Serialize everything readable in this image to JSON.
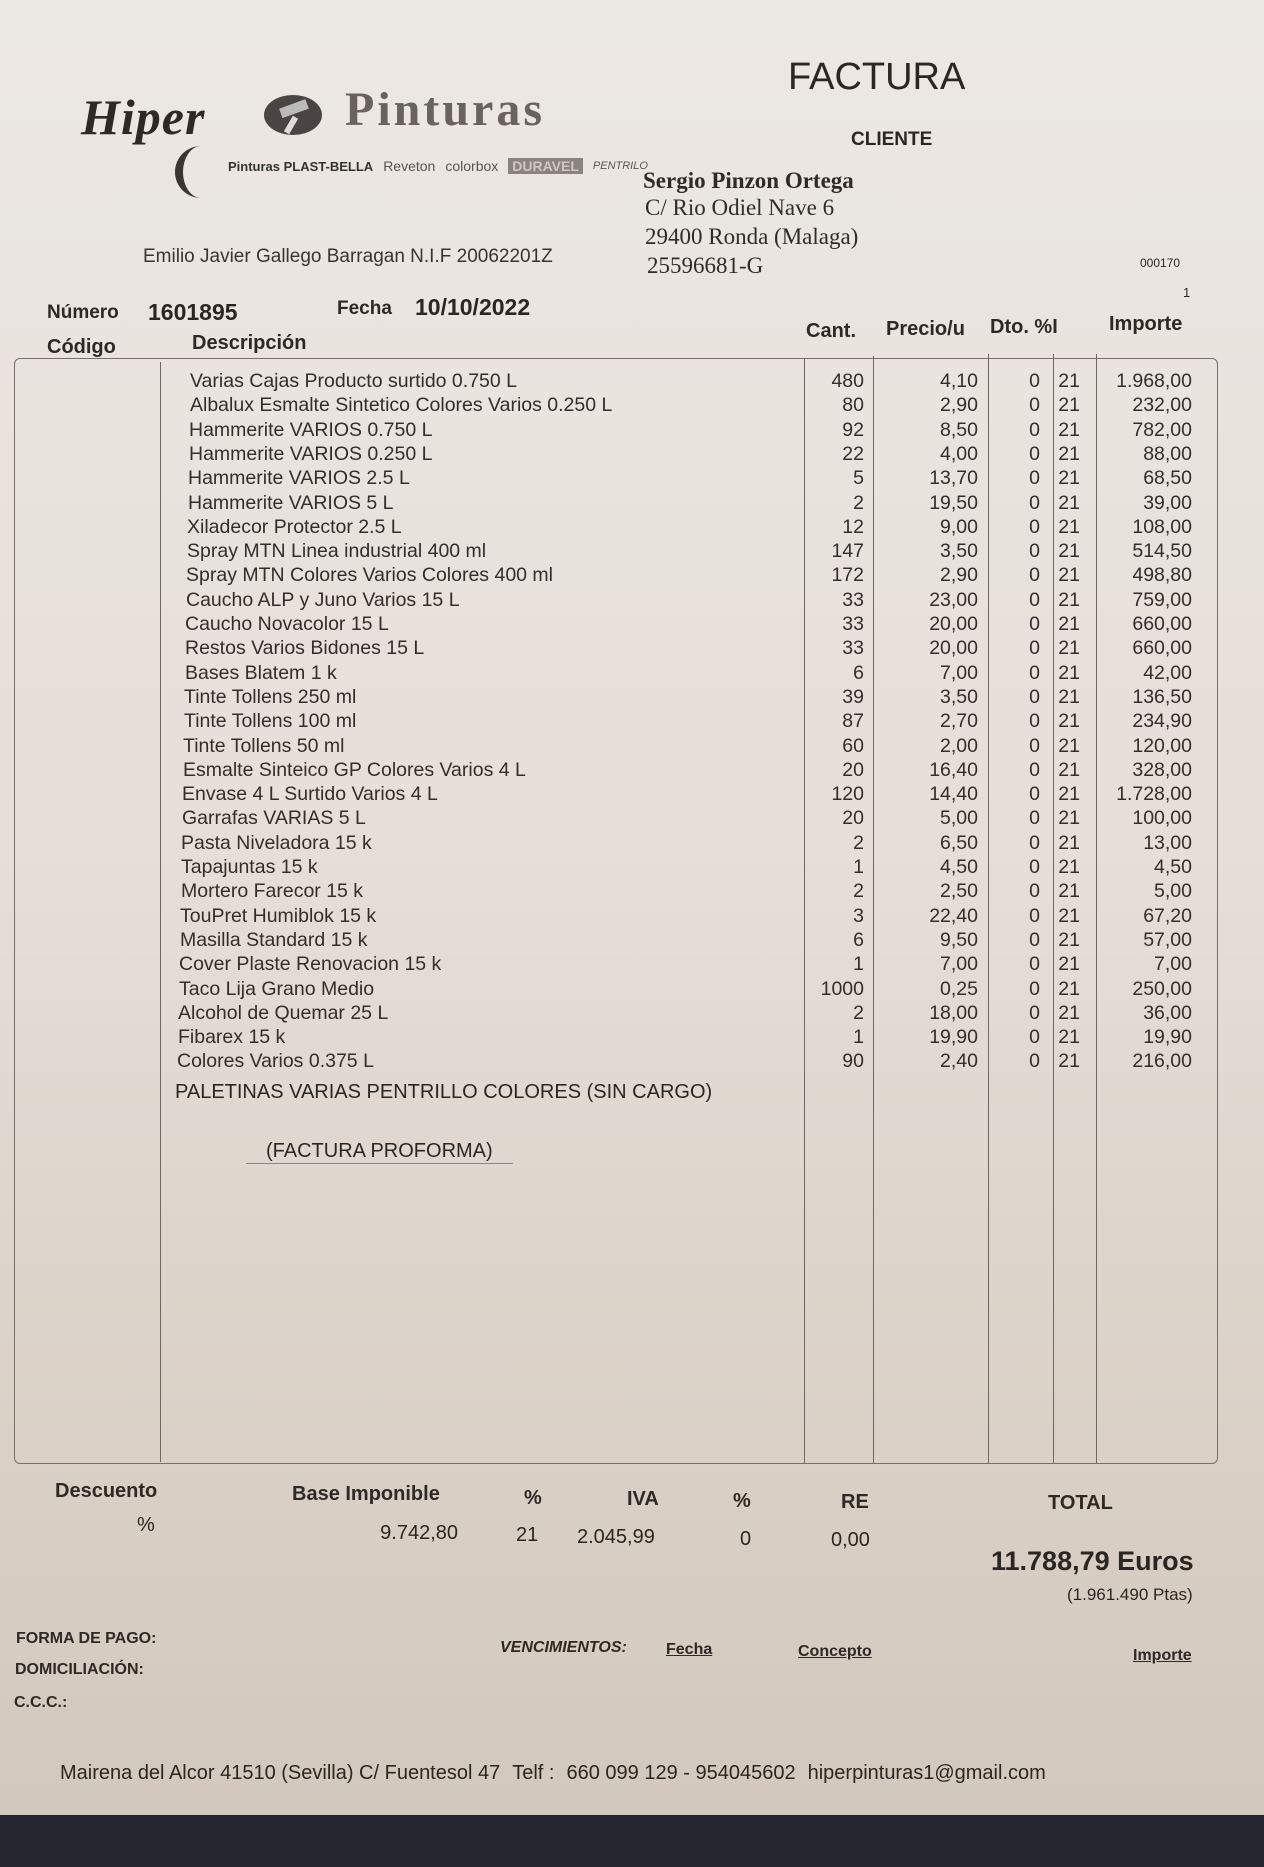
{
  "header": {
    "doc_title": "FACTURA",
    "client_label": "CLIENTE",
    "logo": {
      "word1": "Hiper",
      "word2": "Pinturas",
      "brands": [
        "Pinturas PLAST-BELLA",
        "Reveton",
        "colorbox",
        "DURAVEL",
        "PENTRILO"
      ]
    },
    "issuer": "Emilio Javier Gallego Barragan N.I.F 20062201Z",
    "client": {
      "name": "Sergio Pinzon Ortega",
      "address1": "C/ Rio Odiel Nave 6",
      "address2": "29400 Ronda (Malaga)",
      "nif": "25596681-G"
    },
    "ref_code": "000170",
    "page": "1",
    "numero_label": "Número",
    "numero": "1601895",
    "fecha_label": "Fecha",
    "fecha": "10/10/2022"
  },
  "table": {
    "columns": {
      "codigo": "Código",
      "descripcion": "Descripción",
      "cant": "Cant.",
      "precio": "Precio/u",
      "dto": "Dto. %I",
      "importe": "Importe"
    },
    "rows": [
      {
        "desc": "Varias Cajas Producto surtido 0.750 L",
        "cant": "480",
        "precio": "4,10",
        "dto": "0",
        "iva": "21",
        "importe": "1.968,00"
      },
      {
        "desc": "Albalux Esmalte Sintetico Colores Varios 0.250 L",
        "cant": "80",
        "precio": "2,90",
        "dto": "0",
        "iva": "21",
        "importe": "232,00"
      },
      {
        "desc": "Hammerite VARIOS 0.750 L",
        "cant": "92",
        "precio": "8,50",
        "dto": "0",
        "iva": "21",
        "importe": "782,00"
      },
      {
        "desc": "Hammerite VARIOS 0.250 L",
        "cant": "22",
        "precio": "4,00",
        "dto": "0",
        "iva": "21",
        "importe": "88,00"
      },
      {
        "desc": "Hammerite VARIOS 2.5 L",
        "cant": "5",
        "precio": "13,70",
        "dto": "0",
        "iva": "21",
        "importe": "68,50"
      },
      {
        "desc": "Hammerite VARIOS 5 L",
        "cant": "2",
        "precio": "19,50",
        "dto": "0",
        "iva": "21",
        "importe": "39,00"
      },
      {
        "desc": "Xiladecor Protector 2.5 L",
        "cant": "12",
        "precio": "9,00",
        "dto": "0",
        "iva": "21",
        "importe": "108,00"
      },
      {
        "desc": "Spray MTN Linea industrial 400 ml",
        "cant": "147",
        "precio": "3,50",
        "dto": "0",
        "iva": "21",
        "importe": "514,50"
      },
      {
        "desc": "Spray MTN Colores Varios Colores 400 ml",
        "cant": "172",
        "precio": "2,90",
        "dto": "0",
        "iva": "21",
        "importe": "498,80"
      },
      {
        "desc": "Caucho ALP y Juno Varios 15 L",
        "cant": "33",
        "precio": "23,00",
        "dto": "0",
        "iva": "21",
        "importe": "759,00"
      },
      {
        "desc": "Caucho Novacolor 15 L",
        "cant": "33",
        "precio": "20,00",
        "dto": "0",
        "iva": "21",
        "importe": "660,00"
      },
      {
        "desc": "Restos Varios Bidones 15 L",
        "cant": "33",
        "precio": "20,00",
        "dto": "0",
        "iva": "21",
        "importe": "660,00"
      },
      {
        "desc": "Bases Blatem 1 k",
        "cant": "6",
        "precio": "7,00",
        "dto": "0",
        "iva": "21",
        "importe": "42,00"
      },
      {
        "desc": "Tinte Tollens 250 ml",
        "cant": "39",
        "precio": "3,50",
        "dto": "0",
        "iva": "21",
        "importe": "136,50"
      },
      {
        "desc": "Tinte Tollens 100 ml",
        "cant": "87",
        "precio": "2,70",
        "dto": "0",
        "iva": "21",
        "importe": "234,90"
      },
      {
        "desc": "Tinte Tollens 50 ml",
        "cant": "60",
        "precio": "2,00",
        "dto": "0",
        "iva": "21",
        "importe": "120,00"
      },
      {
        "desc": "Esmalte Sinteico GP Colores Varios 4 L",
        "cant": "20",
        "precio": "16,40",
        "dto": "0",
        "iva": "21",
        "importe": "328,00"
      },
      {
        "desc": "Envase 4 L Surtido Varios 4 L",
        "cant": "120",
        "precio": "14,40",
        "dto": "0",
        "iva": "21",
        "importe": "1.728,00"
      },
      {
        "desc": "Garrafas VARIAS 5 L",
        "cant": "20",
        "precio": "5,00",
        "dto": "0",
        "iva": "21",
        "importe": "100,00"
      },
      {
        "desc": "Pasta Niveladora 15 k",
        "cant": "2",
        "precio": "6,50",
        "dto": "0",
        "iva": "21",
        "importe": "13,00"
      },
      {
        "desc": "Tapajuntas 15 k",
        "cant": "1",
        "precio": "4,50",
        "dto": "0",
        "iva": "21",
        "importe": "4,50"
      },
      {
        "desc": "Mortero Farecor 15 k",
        "cant": "2",
        "precio": "2,50",
        "dto": "0",
        "iva": "21",
        "importe": "5,00"
      },
      {
        "desc": "TouPret Humiblok 15 k",
        "cant": "3",
        "precio": "22,40",
        "dto": "0",
        "iva": "21",
        "importe": "67,20"
      },
      {
        "desc": "Masilla Standard 15 k",
        "cant": "6",
        "precio": "9,50",
        "dto": "0",
        "iva": "21",
        "importe": "57,00"
      },
      {
        "desc": "Cover Plaste Renovacion 15 k",
        "cant": "1",
        "precio": "7,00",
        "dto": "0",
        "iva": "21",
        "importe": "7,00"
      },
      {
        "desc": "Taco Lija Grano Medio",
        "cant": "1000",
        "precio": "0,25",
        "dto": "0",
        "iva": "21",
        "importe": "250,00"
      },
      {
        "desc": "Alcohol de Quemar 25 L",
        "cant": "2",
        "precio": "18,00",
        "dto": "0",
        "iva": "21",
        "importe": "36,00"
      },
      {
        "desc": "Fibarex 15 k",
        "cant": "1",
        "precio": "19,90",
        "dto": "0",
        "iva": "21",
        "importe": "19,90"
      },
      {
        "desc": "Colores Varios 0.375 L",
        "cant": "90",
        "precio": "2,40",
        "dto": "0",
        "iva": "21",
        "importe": "216,00"
      }
    ],
    "note1": "PALETINAS VARIAS PENTRILLO COLORES (SIN CARGO)",
    "note2": "(FACTURA PROFORMA)"
  },
  "totals": {
    "descuento_label": "Descuento",
    "descuento_pct": "%",
    "base_label": "Base Imponible",
    "base": "9.742,80",
    "iva_pct_label": "%",
    "iva_pct": "21",
    "iva_label": "IVA",
    "iva": "2.045,99",
    "re_pct_label": "%",
    "re_pct": "0",
    "re_label": "RE",
    "re": "0,00",
    "total_label": "TOTAL",
    "total": "11.788,79 Euros",
    "total_ptas": "(1.961.490 Ptas)"
  },
  "payment": {
    "forma_pago": "FORMA DE PAGO:",
    "domiciliacion": "DOMICILIACIÓN:",
    "ccc": "C.C.C.:",
    "vencimientos": "VENCIMIENTOS:",
    "fecha": "Fecha",
    "concepto": "Concepto",
    "importe": "Importe"
  },
  "footer": {
    "address": "Mairena del Alcor 41510 (Sevilla) C/ Fuentesol 47",
    "phone_label": "Telf :",
    "phones": "660 099 129 - 954045602",
    "email": "hiperpinturas1@gmail.com"
  }
}
